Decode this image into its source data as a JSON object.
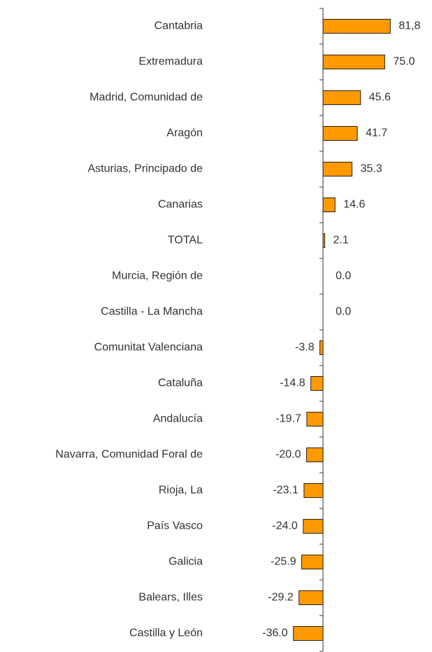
{
  "chart_data": {
    "type": "barh",
    "categories": [
      "Cantabria",
      "Extremadura",
      "Madrid, Comunidad de",
      "Aragón",
      "Asturias, Principado de",
      "Canarias",
      "TOTAL",
      "Murcia, Región de",
      "Castilla - La Mancha",
      "Comunitat Valenciana",
      "Cataluña",
      "Andalucía",
      "Navarra, Comunidad Foral de",
      "Rioja, La",
      "País Vasco",
      "Galicia",
      "Balears, Illes",
      "Castilla y León"
    ],
    "values": [
      81.8,
      75.0,
      45.6,
      41.7,
      35.3,
      14.6,
      2.1,
      0.0,
      0.0,
      -3.8,
      -14.8,
      -19.7,
      -20.0,
      -23.1,
      -24.0,
      -25.9,
      -29.2,
      -36.0
    ],
    "value_labels": [
      "81,8",
      "75.0",
      "45.6",
      "41.7",
      "35.3",
      "14.6",
      "2.1",
      "0.0",
      "0.0",
      "-3.8",
      "-14.8",
      "-19.7",
      "-20.0",
      "-23.1",
      "-24.0",
      "-25.9",
      "-29.2",
      "-36.0"
    ],
    "color": "#ff9900",
    "xlim": [
      -40,
      90
    ]
  }
}
